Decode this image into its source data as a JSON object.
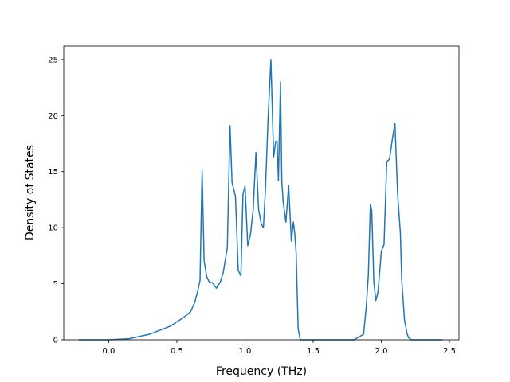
{
  "chart_data": {
    "type": "line",
    "title": "",
    "xlabel": "Frequency (THz)",
    "ylabel": "Density of States",
    "xlim": [
      -0.33,
      2.57
    ],
    "ylim": [
      0,
      26.2
    ],
    "grid": false,
    "legend": "none",
    "x_ticks": [
      0.0,
      0.5,
      1.0,
      1.5,
      2.0,
      2.5
    ],
    "x_tick_labels": [
      "0.0",
      "0.5",
      "1.0",
      "1.5",
      "2.0",
      "2.5"
    ],
    "y_ticks": [
      0,
      5,
      10,
      15,
      20,
      25
    ],
    "y_tick_labels": [
      "0",
      "5",
      "10",
      "15",
      "20",
      "25"
    ],
    "colors": {
      "line": "#1f77b4",
      "axes": "#000000",
      "background": "#ffffff"
    },
    "series": [
      {
        "x": [
          -0.22,
          0.0,
          0.15,
          0.3,
          0.45,
          0.55,
          0.6,
          0.63,
          0.65,
          0.67,
          0.685,
          0.7,
          0.72,
          0.74,
          0.76,
          0.79,
          0.82,
          0.84,
          0.87,
          0.89,
          0.905,
          0.93,
          0.95,
          0.97,
          0.985,
          1.0,
          1.02,
          1.04,
          1.06,
          1.08,
          1.1,
          1.12,
          1.135,
          1.15,
          1.17,
          1.19,
          1.21,
          1.225,
          1.235,
          1.245,
          1.26,
          1.27,
          1.28,
          1.3,
          1.32,
          1.34,
          1.355,
          1.365,
          1.375,
          1.39,
          1.405,
          1.42,
          1.44,
          1.6,
          1.8,
          1.87,
          1.89,
          1.905,
          1.92,
          1.93,
          1.945,
          1.96,
          1.975,
          1.99,
          2.0,
          2.02,
          2.04,
          2.06,
          2.08,
          2.1,
          2.12,
          2.14,
          2.15,
          2.17,
          2.19,
          2.2,
          2.22,
          2.3,
          2.45
        ],
        "y": [
          0,
          0,
          0.1,
          0.5,
          1.2,
          2.0,
          2.5,
          3.3,
          4.2,
          5.3,
          15.1,
          7.0,
          5.6,
          5.1,
          5.1,
          4.6,
          5.2,
          6.0,
          8.2,
          19.1,
          14.0,
          12.8,
          6.2,
          5.7,
          13.0,
          13.7,
          8.4,
          9.4,
          11.6,
          16.7,
          11.6,
          10.3,
          10.0,
          13.5,
          20.0,
          25.0,
          16.3,
          17.7,
          17.7,
          14.2,
          23.0,
          14.1,
          12.3,
          10.5,
          13.8,
          8.8,
          10.5,
          9.5,
          7.8,
          1.0,
          0,
          0,
          0,
          0,
          0,
          0.5,
          3.0,
          5.8,
          12.1,
          11.5,
          5.2,
          3.5,
          4.2,
          6.3,
          7.9,
          8.5,
          15.9,
          16.1,
          17.8,
          19.3,
          13.0,
          9.5,
          5.3,
          1.8,
          0.5,
          0.2,
          0,
          0,
          0
        ]
      }
    ]
  }
}
